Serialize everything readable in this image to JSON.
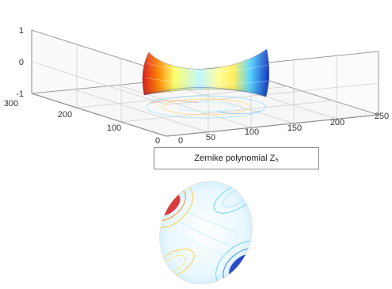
{
  "caption": "Zernike polynomial Z₅",
  "colors": {
    "surface_high": "#d7191c",
    "surface_mid": "#ffff66",
    "surface_mid2": "#7fdbff",
    "surface_low": "#0b2fbf",
    "axes": "#9a9a9a",
    "grid": "#d0d0d0"
  },
  "chart_data": [
    {
      "type": "surface",
      "function": "Zernike polynomial (saddle / astigmatism)",
      "z_ticks": [
        "1",
        "0",
        "-1"
      ],
      "zlim": [
        -1,
        1
      ],
      "x_ticks": [
        "0",
        "50",
        "100",
        "150",
        "200",
        "250"
      ],
      "xlim": [
        0,
        250
      ],
      "y_ticks": [
        "300",
        "200",
        "100",
        "0"
      ],
      "ylim": [
        0,
        300
      ],
      "grid": true,
      "colormap": "jet"
    },
    {
      "type": "contour",
      "function": "Zernike polynomial (saddle / astigmatism)",
      "colormap": "jet",
      "grid": false
    }
  ]
}
